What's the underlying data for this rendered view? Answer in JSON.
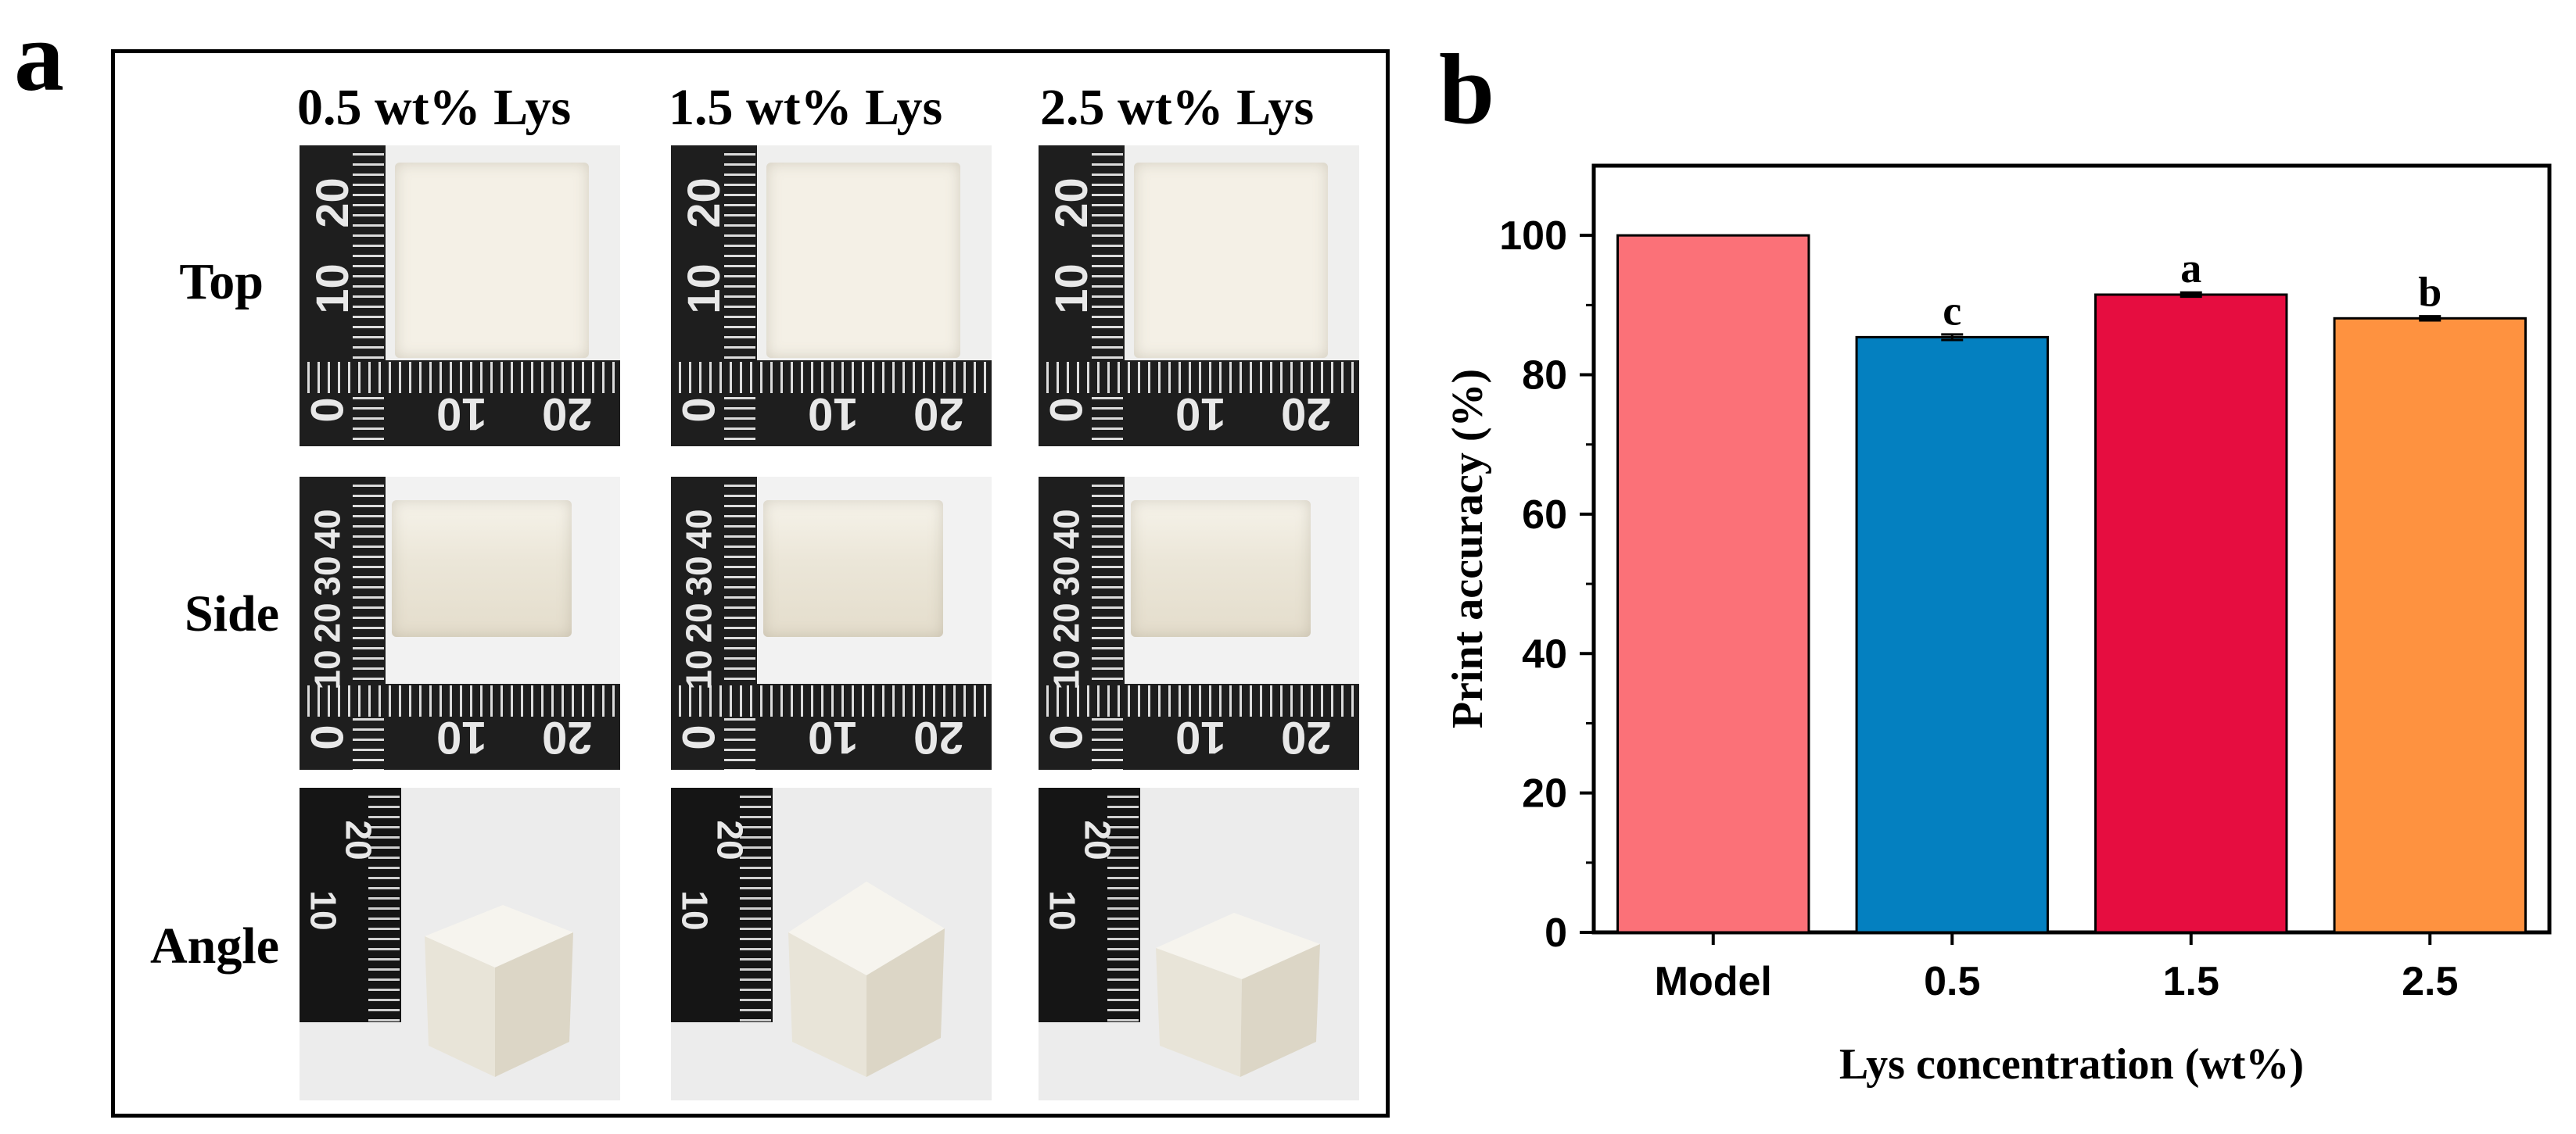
{
  "panel_a": {
    "letter": "a",
    "columns": [
      "0.5 wt% Lys",
      "1.5 wt% Lys",
      "2.5 wt% Lys"
    ],
    "rows": [
      "Top",
      "Side",
      "Angle"
    ],
    "ruler_labels": {
      "top_v": [
        "20",
        "10",
        "0"
      ],
      "top_h": [
        "10",
        "20"
      ],
      "side_v": [
        "40",
        "30",
        "20",
        "10",
        "0"
      ],
      "side_h": [
        "10",
        "20"
      ],
      "angle_v": [
        "20",
        "10"
      ]
    }
  },
  "panel_b": {
    "letter": "b"
  },
  "chart_data": {
    "type": "bar",
    "categories": [
      "Model",
      "0.5",
      "1.5",
      "2.5"
    ],
    "values": [
      100,
      85.4,
      91.5,
      88.1
    ],
    "errors": [
      0,
      0.4,
      0.3,
      0.3
    ],
    "significance": [
      "",
      "c",
      "a",
      "b"
    ],
    "colors": [
      "#FB7178",
      "#0480C0",
      "#E60D40",
      "#FE9240"
    ],
    "xlabel": "Lys concentration (wt%)",
    "ylabel": "Print accuracy (%)",
    "ylim": [
      0,
      110
    ],
    "yticks": [
      0,
      20,
      40,
      60,
      80,
      100
    ],
    "grid": false
  }
}
